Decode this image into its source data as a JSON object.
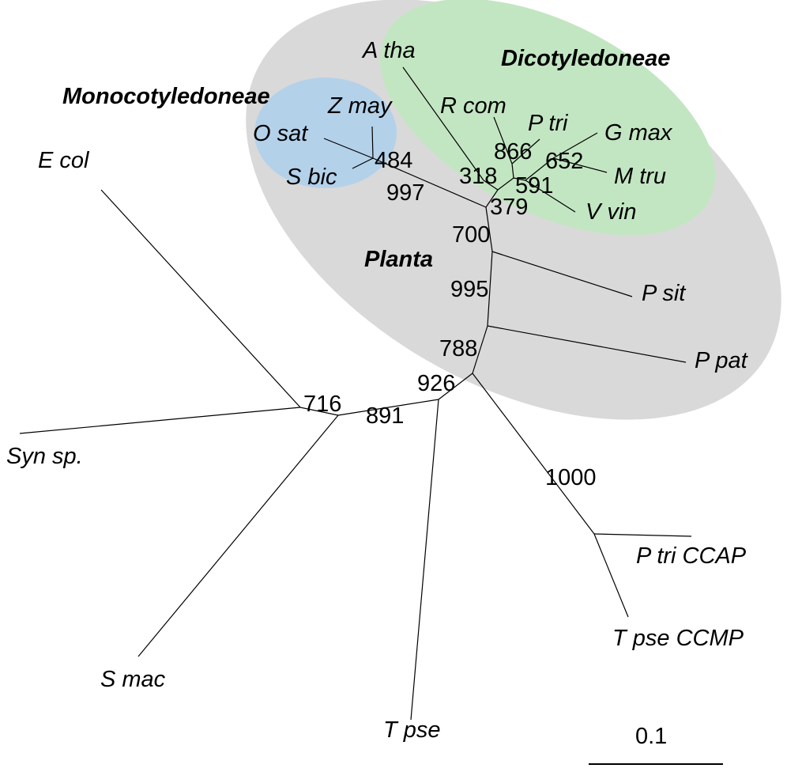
{
  "colors": {
    "planta": "#d9d9d9",
    "monocot": "#b4d1ea",
    "dicot": "#c3e6c2",
    "branch": "#000000"
  },
  "groups": {
    "monocot": "Monocotyledoneae",
    "dicot": "Dicotyledoneae",
    "planta": "Planta"
  },
  "taxa": {
    "a_tha": "A tha",
    "z_may": "Z may",
    "o_sat": "O sat",
    "s_bic": "S bic",
    "r_com": "R com",
    "p_tri": "P tri",
    "g_max": "G max",
    "m_tru": "M tru",
    "v_vin": "V vin",
    "p_sit": "P sit",
    "p_pat": "P pat",
    "e_col": "E col",
    "syn_sp": "Syn sp.",
    "s_mac": "S mac",
    "t_pse": "T pse",
    "p_tri_ccap": "P tri CCAP",
    "t_pse_ccmp": "T pse CCMP"
  },
  "bootstrap": {
    "b484": "484",
    "b997": "997",
    "b318": "318",
    "b866": "866",
    "b652": "652",
    "b591": "591",
    "b379": "379",
    "b700": "700",
    "b995": "995",
    "b788": "788",
    "b926": "926",
    "b716": "716",
    "b891": "891",
    "b1000": "1000"
  },
  "scale_bar": {
    "label": "0.1",
    "value": 0.1
  }
}
